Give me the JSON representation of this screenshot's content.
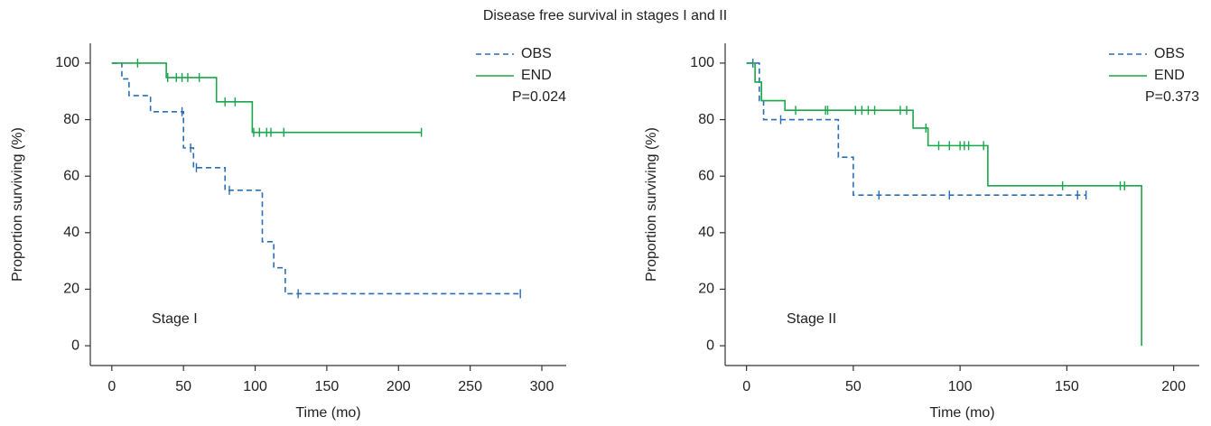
{
  "title": "Disease free survival in stages I and II",
  "chart_data": [
    {
      "type": "step",
      "panel_label": "Stage I",
      "annotation": "P=0.024",
      "x_label": "Time (mo)",
      "y_label": "Proportion surviving (%)",
      "xlim": [
        -15,
        317
      ],
      "ylim": [
        -7,
        107
      ],
      "xticks": [
        0,
        50,
        100,
        150,
        200,
        250,
        300
      ],
      "yticks": [
        0,
        20,
        40,
        60,
        80,
        100
      ],
      "legend": "upper right",
      "grid": false,
      "series": [
        {
          "name": "OBS",
          "color": "#2a6db5",
          "dashed": true,
          "x": [
            0,
            7,
            12,
            27,
            50,
            57,
            79,
            105,
            113,
            121,
            285
          ],
          "values": [
            100,
            94.4,
            88.5,
            82.8,
            70,
            63,
            55,
            36.8,
            27.6,
            18.4,
            18.4
          ],
          "censored_x": [
            49,
            55,
            59,
            82,
            130,
            285
          ],
          "censored_values": [
            82.8,
            70,
            63,
            55,
            18.4,
            18.4
          ]
        },
        {
          "name": "END",
          "color": "#1aa64a",
          "dashed": false,
          "x": [
            0,
            38,
            73,
            98,
            216
          ],
          "values": [
            100,
            94.9,
            86.3,
            75.5,
            75.5
          ],
          "censored_x": [
            18,
            39,
            45,
            49,
            53,
            61,
            79,
            86,
            99,
            103,
            108,
            111,
            120,
            216
          ],
          "censored_values": [
            100,
            94.9,
            94.9,
            94.9,
            94.9,
            94.9,
            86.3,
            86.3,
            75.5,
            75.5,
            75.5,
            75.5,
            75.5,
            75.5
          ]
        }
      ]
    },
    {
      "type": "step",
      "panel_label": "Stage II",
      "annotation": "P=0.373",
      "x_label": "Time (mo)",
      "y_label": "Proportion surviving (%)",
      "xlim": [
        -10,
        212
      ],
      "ylim": [
        -7,
        107
      ],
      "xticks": [
        0,
        50,
        100,
        150,
        200
      ],
      "yticks": [
        0,
        20,
        40,
        60,
        80,
        100
      ],
      "legend": "upper right",
      "grid": false,
      "series": [
        {
          "name": "OBS",
          "color": "#2a6db5",
          "dashed": true,
          "x": [
            0,
            6,
            8,
            43,
            50,
            159
          ],
          "values": [
            100,
            86.7,
            80,
            66.7,
            53.3,
            53.3
          ],
          "censored_x": [
            3,
            16,
            62,
            95,
            155,
            159
          ],
          "censored_values": [
            100,
            80,
            53.3,
            53.3,
            53.3,
            53.3
          ]
        },
        {
          "name": "END",
          "color": "#1aa64a",
          "dashed": false,
          "x": [
            0,
            4,
            7,
            18,
            78,
            85,
            113,
            185
          ],
          "values": [
            100,
            93.3,
            86.7,
            83.3,
            77,
            70.8,
            56.6,
            0
          ],
          "censored_x": [
            23,
            37,
            38,
            51,
            54,
            57,
            60,
            72,
            75,
            84,
            90,
            95,
            100,
            102,
            104,
            111,
            148,
            175,
            177
          ],
          "censored_values": [
            83.3,
            83.3,
            83.3,
            83.3,
            83.3,
            83.3,
            83.3,
            83.3,
            83.3,
            77,
            70.8,
            70.8,
            70.8,
            70.8,
            70.8,
            70.8,
            56.6,
            56.6,
            56.6
          ]
        }
      ]
    }
  ]
}
